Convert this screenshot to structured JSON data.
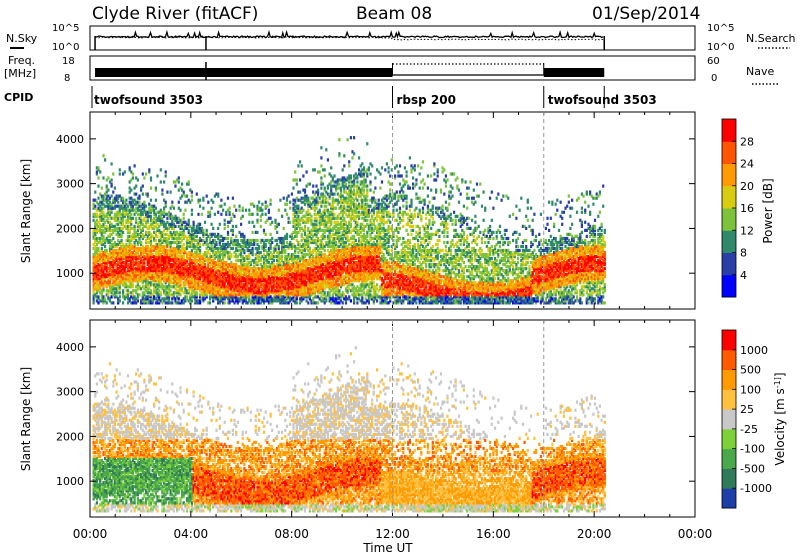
{
  "header": {
    "station": "Clyde River (fitACF)",
    "beam": "Beam 08",
    "date": "01/Sep/2014"
  },
  "params": {
    "nsky_label": "N.Sky",
    "nsearch_label": "N.Search",
    "freq_label": "Freq.",
    "freq_unit": "[MHz]",
    "nave_label": "Nave",
    "cpid_label": "CPID",
    "nsky_ticks": [
      "10^5",
      "10^0"
    ],
    "freq_ticks": [
      "18",
      "8"
    ],
    "nave_ticks": [
      "60",
      "0"
    ],
    "cpid_segments": [
      {
        "label": "twofsound 3503",
        "start_h": 0.0
      },
      {
        "label": "rbsp 200",
        "start_h": 12.0
      },
      {
        "label": "twofsound 3503",
        "start_h": 18.0
      }
    ]
  },
  "chart_data": [
    {
      "type": "heatmap",
      "title": "",
      "xlabel": "",
      "ylabel": "Slant Range [km]",
      "x_range_h": [
        0,
        24
      ],
      "data_end_h": 20.4,
      "ylim": [
        200,
        4600
      ],
      "yticks": [
        1000,
        2000,
        3000,
        4000
      ],
      "colorbar": {
        "label": "Power [dB]",
        "ticks": [
          "4",
          "8",
          "12",
          "16",
          "20",
          "24",
          "28"
        ],
        "colors": [
          "#0000ff",
          "#2a3ea8",
          "#2e8a6a",
          "#7cc23a",
          "#d8cc10",
          "#ff9a00",
          "#ff5500",
          "#ff0000"
        ]
      }
    },
    {
      "type": "heatmap",
      "title": "",
      "xlabel": "Time UT",
      "ylabel": "Slant Range [km]",
      "x_range_h": [
        0,
        24
      ],
      "data_end_h": 20.4,
      "ylim": [
        200,
        4600
      ],
      "yticks": [
        1000,
        2000,
        3000,
        4000
      ],
      "xticks": [
        "00:00",
        "04:00",
        "08:00",
        "12:00",
        "16:00",
        "20:00",
        "00:00"
      ],
      "colorbar": {
        "label": "Velocity [m s^-1]",
        "ticks": [
          "1000",
          "500",
          "100",
          "25",
          "-25",
          "-100",
          "-500",
          "-1000"
        ],
        "colors": [
          "#1f3fa8",
          "#2e7a5a",
          "#4aa84a",
          "#7cd03a",
          "#c8c8c8",
          "#ffc040",
          "#ff9a00",
          "#ff5a00",
          "#ff0000"
        ]
      }
    }
  ]
}
